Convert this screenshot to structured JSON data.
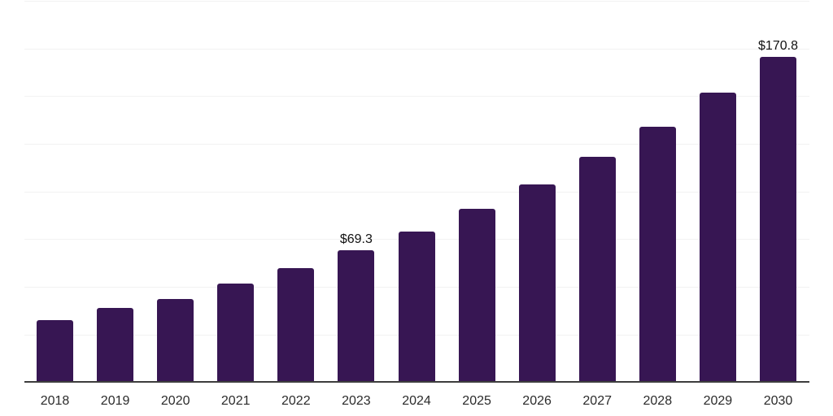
{
  "chart_data": {
    "type": "bar",
    "title": "",
    "xlabel": "",
    "ylabel": "",
    "categories": [
      "2018",
      "2019",
      "2020",
      "2021",
      "2022",
      "2023",
      "2024",
      "2025",
      "2026",
      "2027",
      "2028",
      "2029",
      "2030"
    ],
    "values": [
      32.8,
      39.0,
      43.5,
      51.6,
      59.8,
      69.3,
      79.1,
      90.9,
      103.7,
      118.2,
      134.2,
      151.7,
      170.8
    ],
    "data_labels": [
      null,
      null,
      null,
      null,
      null,
      "$69.3",
      null,
      null,
      null,
      null,
      null,
      null,
      "$170.8"
    ],
    "ylim": [
      0,
      200
    ],
    "gridline_interval": 25,
    "grid": true,
    "legend_position": "none",
    "y_tick_labels_visible": false,
    "colors": {
      "bar": "#371653",
      "x_axis_line": "#3d3d3d",
      "gridline": "#f2f2f2",
      "x_tick_label": "#2b2b2b",
      "data_label": "#111111",
      "background": "#ffffff"
    }
  }
}
